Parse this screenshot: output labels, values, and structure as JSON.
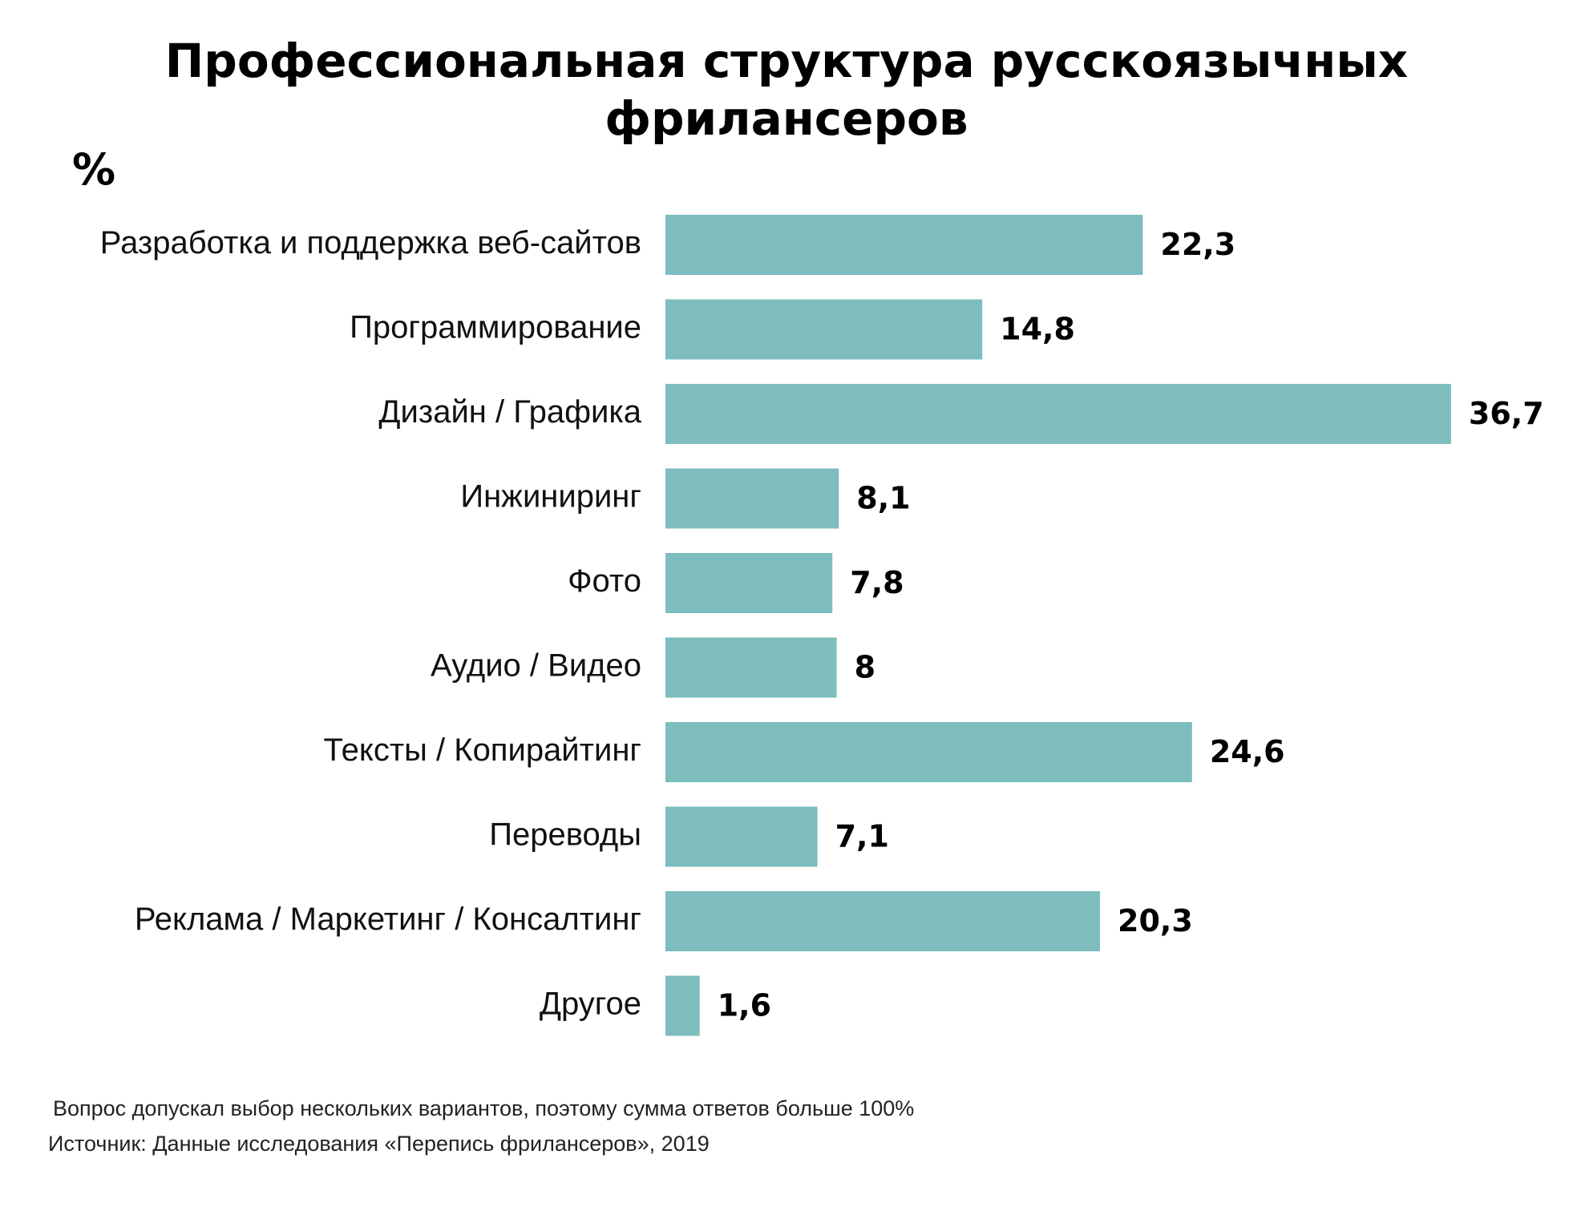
{
  "chart_data": {
    "type": "bar",
    "orientation": "horizontal",
    "title": "Профессиональная структура русскоязычных фрилансеров",
    "unit": "%",
    "categories": [
      "Разработка и поддержка веб-сайтов",
      "Программирование",
      "Дизайн / Графика",
      "Инжиниринг",
      "Фото",
      "Аудио / Видео",
      "Тексты / Копирайтинг",
      "Переводы",
      "Реклама / Маркетинг / Консалтинг",
      "Другое"
    ],
    "values": [
      22.3,
      14.8,
      36.7,
      8.1,
      7.8,
      8,
      24.6,
      7.1,
      20.3,
      1.6
    ],
    "value_labels": [
      "22,3",
      "14,8",
      "36,7",
      "8,1",
      "7,8",
      "8",
      "24,6",
      "7,1",
      "20,3",
      "1,6"
    ],
    "bar_color": "#7dbdbd",
    "grid": false,
    "legend": "none"
  },
  "footnotes": {
    "note": "Вопрос допускал выбор нескольких вариантов, поэтому сумма ответов больше 100%",
    "source": "Источник: Данные исследования «Перепись фрилансеров», 2019"
  }
}
